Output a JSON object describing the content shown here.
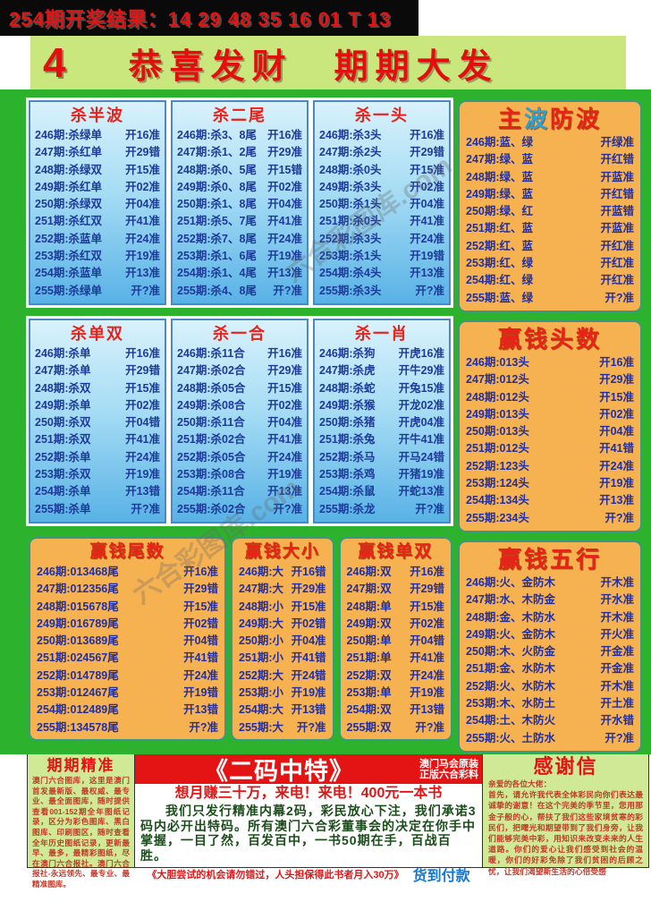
{
  "header": {
    "result_line": "254期开奖结果：14 29 48 35 16 01 T 13",
    "page_number": "4",
    "banner_title": "恭喜发财　期期大发"
  },
  "watermark": "六合彩图库.com",
  "colors": {
    "main_green": "#2db22d",
    "banner_green": "#c9e77d",
    "panel_blue_top": "#d8f2fc",
    "panel_blue_bottom": "#58b2e6",
    "panel_orange": "#f6b250",
    "title_red": "#e8221a",
    "row_navy": "#1d3a99",
    "ad_red": "#e41414",
    "pay_blue": "#1577d4"
  },
  "panels": {
    "blue": [
      {
        "title": "杀半波",
        "rows": [
          {
            "p": "246期",
            "k": "杀绿单",
            "r": "开16准"
          },
          {
            "p": "247期",
            "k": "杀红单",
            "r": "开29错"
          },
          {
            "p": "248期",
            "k": "杀绿双",
            "r": "开15准"
          },
          {
            "p": "249期",
            "k": "杀红单",
            "r": "开02准"
          },
          {
            "p": "250期",
            "k": "杀绿双",
            "r": "开04准"
          },
          {
            "p": "251期",
            "k": "杀红双",
            "r": "开41准"
          },
          {
            "p": "252期",
            "k": "杀蓝单",
            "r": "开24准"
          },
          {
            "p": "253期",
            "k": "杀红双",
            "r": "开19准"
          },
          {
            "p": "254期",
            "k": "杀蓝单",
            "r": "开13准"
          },
          {
            "p": "255期",
            "k": "杀绿单",
            "r": "开?准"
          }
        ]
      },
      {
        "title": "杀二尾",
        "rows": [
          {
            "p": "246期",
            "k": "杀3、8尾",
            "r": "开16准"
          },
          {
            "p": "247期",
            "k": "杀1、2尾",
            "r": "开29准"
          },
          {
            "p": "248期",
            "k": "杀0、5尾",
            "r": "开15错"
          },
          {
            "p": "249期",
            "k": "杀0、8尾",
            "r": "开02准"
          },
          {
            "p": "250期",
            "k": "杀1、8尾",
            "r": "开04准"
          },
          {
            "p": "251期",
            "k": "杀5、7尾",
            "r": "开41准"
          },
          {
            "p": "252期",
            "k": "杀7、8尾",
            "r": "开24准"
          },
          {
            "p": "253期",
            "k": "杀1、6尾",
            "r": "开19准"
          },
          {
            "p": "254期",
            "k": "杀1、4尾",
            "r": "开13准"
          },
          {
            "p": "255期",
            "k": "杀4、8尾",
            "r": "开?准"
          }
        ]
      },
      {
        "title": "杀一头",
        "rows": [
          {
            "p": "246期",
            "k": "杀3头",
            "r": "开16准"
          },
          {
            "p": "247期",
            "k": "杀2头",
            "r": "开29错"
          },
          {
            "p": "248期",
            "k": "杀0头",
            "r": "开15准"
          },
          {
            "p": "249期",
            "k": "杀3头",
            "r": "开02准"
          },
          {
            "p": "250期",
            "k": "杀1头",
            "r": "开04准"
          },
          {
            "p": "251期",
            "k": "杀0头",
            "r": "开41准"
          },
          {
            "p": "252期",
            "k": "杀3头",
            "r": "开24准"
          },
          {
            "p": "253期",
            "k": "杀1头",
            "r": "开19错"
          },
          {
            "p": "254期",
            "k": "杀4头",
            "r": "开13准"
          },
          {
            "p": "255期",
            "k": "杀3头",
            "r": "开?准"
          }
        ]
      },
      {
        "title": "杀单双",
        "rows": [
          {
            "p": "246期",
            "k": "杀单",
            "r": "开16准"
          },
          {
            "p": "247期",
            "k": "杀单",
            "r": "开29错"
          },
          {
            "p": "248期",
            "k": "杀双",
            "r": "开15准"
          },
          {
            "p": "249期",
            "k": "杀单",
            "r": "开02准"
          },
          {
            "p": "250期",
            "k": "杀双",
            "r": "开04错"
          },
          {
            "p": "251期",
            "k": "杀双",
            "r": "开41准"
          },
          {
            "p": "252期",
            "k": "杀单",
            "r": "开24准"
          },
          {
            "p": "253期",
            "k": "杀双",
            "r": "开19准"
          },
          {
            "p": "254期",
            "k": "杀单",
            "r": "开13错"
          },
          {
            "p": "255期",
            "k": "杀单",
            "r": "开?准"
          }
        ]
      },
      {
        "title": "杀一合",
        "rows": [
          {
            "p": "246期",
            "k": "杀11合",
            "r": "开16准"
          },
          {
            "p": "247期",
            "k": "杀02合",
            "r": "开29准"
          },
          {
            "p": "248期",
            "k": "杀05合",
            "r": "开15准"
          },
          {
            "p": "249期",
            "k": "杀08合",
            "r": "开02准"
          },
          {
            "p": "250期",
            "k": "杀11合",
            "r": "开04准"
          },
          {
            "p": "251期",
            "k": "杀02合",
            "r": "开41准"
          },
          {
            "p": "252期",
            "k": "杀05合",
            "r": "开24准"
          },
          {
            "p": "253期",
            "k": "杀08合",
            "r": "开19准"
          },
          {
            "p": "254期",
            "k": "杀11合",
            "r": "开13准"
          },
          {
            "p": "255期",
            "k": "杀02合",
            "r": "开?准"
          }
        ]
      },
      {
        "title": "杀一肖",
        "rows": [
          {
            "p": "246期",
            "k": "杀狗",
            "r": "开虎16准"
          },
          {
            "p": "247期",
            "k": "杀虎",
            "r": "开牛29准"
          },
          {
            "p": "248期",
            "k": "杀蛇",
            "r": "开兔15准"
          },
          {
            "p": "249期",
            "k": "杀猴",
            "r": "开龙02准"
          },
          {
            "p": "250期",
            "k": "杀猪",
            "r": "开虎04准"
          },
          {
            "p": "251期",
            "k": "杀兔",
            "r": "开牛41准"
          },
          {
            "p": "252期",
            "k": "杀马",
            "r": "开马24错"
          },
          {
            "p": "253期",
            "k": "杀鸡",
            "r": "开猪19准"
          },
          {
            "p": "254期",
            "k": "杀鼠",
            "r": "开蛇13准"
          },
          {
            "p": "255期",
            "k": "杀龙",
            "r": "开?准"
          }
        ]
      }
    ],
    "right": [
      {
        "title": "主波防波",
        "title_parts": [
          {
            "text": "主",
            "color": "#e8221a"
          },
          {
            "text": "波",
            "color": "#29a3dc"
          },
          {
            "text": "防波",
            "color": "#e8221a"
          }
        ],
        "rows": [
          {
            "p": "246期",
            "k": "蓝、绿",
            "r": "开绿准"
          },
          {
            "p": "247期",
            "k": "绿、蓝",
            "r": "开红错"
          },
          {
            "p": "248期",
            "k": "绿、蓝",
            "r": "开蓝准"
          },
          {
            "p": "249期",
            "k": "绿、蓝",
            "r": "开红错"
          },
          {
            "p": "250期",
            "k": "绿、红",
            "r": "开蓝错"
          },
          {
            "p": "251期",
            "k": "红、蓝",
            "r": "开蓝准"
          },
          {
            "p": "252期",
            "k": "红、蓝",
            "r": "开红准"
          },
          {
            "p": "253期",
            "k": "红、绿",
            "r": "开红准"
          },
          {
            "p": "254期",
            "k": "红、绿",
            "r": "开红准"
          },
          {
            "p": "255期",
            "k": "蓝、绿",
            "r": "开?准"
          }
        ]
      },
      {
        "title": "赢钱头数",
        "rows": [
          {
            "p": "246期",
            "k": "013头",
            "r": "开16准"
          },
          {
            "p": "247期",
            "k": "012头",
            "r": "开29准"
          },
          {
            "p": "248期",
            "k": "012头",
            "r": "开15准"
          },
          {
            "p": "249期",
            "k": "013头",
            "r": "开02准"
          },
          {
            "p": "250期",
            "k": "013头",
            "r": "开04准"
          },
          {
            "p": "251期",
            "k": "012头",
            "r": "开41错"
          },
          {
            "p": "252期",
            "k": "123头",
            "r": "开24准"
          },
          {
            "p": "253期",
            "k": "124头",
            "r": "开19准"
          },
          {
            "p": "254期",
            "k": "134头",
            "r": "开13准"
          },
          {
            "p": "255期",
            "k": "234头",
            "r": "开?准"
          }
        ]
      },
      {
        "title": "赢钱五行",
        "rows": [
          {
            "p": "246期",
            "k": "火、金防木",
            "r": "开木准"
          },
          {
            "p": "247期",
            "k": "水、木防金",
            "r": "开水准"
          },
          {
            "p": "248期",
            "k": "金、木防水",
            "r": "开木准"
          },
          {
            "p": "249期",
            "k": "火、金防木",
            "r": "开火准"
          },
          {
            "p": "250期",
            "k": "木、火防金",
            "r": "开金准"
          },
          {
            "p": "251期",
            "k": "金、水防木",
            "r": "开金准"
          },
          {
            "p": "252期",
            "k": "火、水防木",
            "r": "开木准"
          },
          {
            "p": "253期",
            "k": "木、水防土",
            "r": "开土准"
          },
          {
            "p": "254期",
            "k": "土、木防火",
            "r": "开水错"
          },
          {
            "p": "255期",
            "k": "火、土防水",
            "r": "开?准"
          }
        ]
      }
    ],
    "bottom": [
      {
        "title": "赢钱尾数",
        "rows": [
          {
            "p": "246期",
            "k": "013468尾",
            "r": "开16准"
          },
          {
            "p": "247期",
            "k": "012356尾",
            "r": "开29错"
          },
          {
            "p": "248期",
            "k": "015678尾",
            "r": "开15准"
          },
          {
            "p": "249期",
            "k": "016789尾",
            "r": "开02错"
          },
          {
            "p": "250期",
            "k": "013689尾",
            "r": "开04错"
          },
          {
            "p": "251期",
            "k": "024567尾",
            "r": "开41错"
          },
          {
            "p": "252期",
            "k": "014789尾",
            "r": "开24准"
          },
          {
            "p": "253期",
            "k": "012467尾",
            "r": "开19错"
          },
          {
            "p": "254期",
            "k": "012489尾",
            "r": "开13错"
          },
          {
            "p": "255期",
            "k": "134578尾",
            "r": "开?准"
          }
        ]
      },
      {
        "title": "赢钱大小",
        "rows": [
          {
            "p": "246期",
            "k": "大",
            "r": "开16错"
          },
          {
            "p": "247期",
            "k": "大",
            "r": "开29准"
          },
          {
            "p": "248期",
            "k": "小",
            "r": "开15准"
          },
          {
            "p": "249期",
            "k": "大",
            "r": "开02错"
          },
          {
            "p": "250期",
            "k": "小",
            "r": "开04准"
          },
          {
            "p": "251期",
            "k": "小",
            "r": "开41错"
          },
          {
            "p": "252期",
            "k": "大",
            "r": "开24错"
          },
          {
            "p": "253期",
            "k": "小",
            "r": "开19准"
          },
          {
            "p": "254期",
            "k": "大",
            "r": "开13错"
          },
          {
            "p": "255期",
            "k": "大",
            "r": "开?准"
          }
        ]
      },
      {
        "title": "赢钱单双",
        "rows": [
          {
            "p": "246期",
            "k": "双",
            "r": "开16准"
          },
          {
            "p": "247期",
            "k": "双",
            "r": "开29错"
          },
          {
            "p": "248期",
            "k": "单",
            "r": "开15准"
          },
          {
            "p": "249期",
            "k": "双",
            "r": "开02准"
          },
          {
            "p": "250期",
            "k": "单",
            "r": "开04错"
          },
          {
            "p": "251期",
            "k": "单",
            "r": "开41准"
          },
          {
            "p": "252期",
            "k": "双",
            "r": "开24准"
          },
          {
            "p": "253期",
            "k": "单",
            "r": "开19准"
          },
          {
            "p": "254期",
            "k": "双",
            "r": "开13错"
          },
          {
            "p": "255期",
            "k": "双",
            "r": "开?准"
          }
        ]
      }
    ]
  },
  "bottom": {
    "left": {
      "title": "期期精准",
      "body": "澳门六合图库，这里是澳门首发最新版、最权威、最专业、最全面图库，随时提供查看001-152期全年图纸记录，区分为彩色图库、黑白图库、印刷图区，随时查看全年历史图纸记录，更新最早、最多，最精彩图纸，尽在澳门六合报社。澳门六合报社-永远领先、最专业、最精准图库。"
    },
    "center": {
      "title": "《二码中特》",
      "origin_line1": "澳门马会原装",
      "origin_line2": "正版六合彩料",
      "hotline": "想月赚三十万，来电！来电！400元一本书",
      "body": "我们只发行精准内幕2码，彩民放心下注，我们承诺3码内必开出特码。所有澳门六合彩董事会的决定在你手中掌握，一目了然，百发百中，一书50期在手，百战百胜。",
      "guarantee": "《大胆尝试的机会请勿错过，人头担保得此书者月入30万》",
      "payment": "货到付款"
    },
    "right": {
      "title": "感谢信",
      "salutation": "亲爱的各位大佬：",
      "body": "首先，请允许我代表全体彩民向你们表达最诚挚的谢意！在这个完美的季节里，您用那金子般的心，帮扶了我们这些家境贫寒的彩民们，把曙光和期望带到了我们身旁，让我们能够完美中彩，用知识来改变未来的人生道路。你们的爱心让我们感受到社会的温暖，你们的好彩免除了我们贫困的后顾之忧，让我们渴望新生活的心倍受感"
    }
  }
}
